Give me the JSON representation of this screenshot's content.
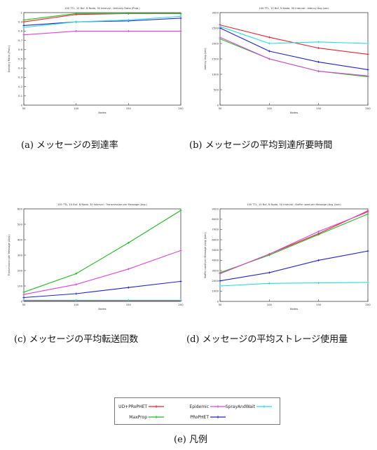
{
  "chart_data": [
    {
      "id": "a",
      "type": "line",
      "title": "100 TTL, 10 Buf, N Node, 30 Interval : Delivery Ratio (Prob.)",
      "xlabel": "Nodes",
      "ylabel": "Delivery Ratio (Prob.)",
      "x": [
        50,
        100,
        150,
        200
      ],
      "xlim": [
        50,
        200
      ],
      "ylim": [
        0,
        1
      ],
      "yticks": [
        0,
        0.1,
        0.2,
        0.3,
        0.4,
        0.5,
        0.6,
        0.7,
        0.8,
        0.9,
        1
      ],
      "ytick_labels": [
        "0",
        "0.1",
        "0.2",
        "0.3",
        "0.4",
        "0.5",
        "0.6",
        "0.7",
        "0.8",
        "0.9",
        "1"
      ],
      "grid": false,
      "series": [
        {
          "key": "ud",
          "values": [
            0.9,
            0.98,
            0.99,
            0.99
          ],
          "color": "#e8202a"
        },
        {
          "key": "maxprop",
          "values": [
            0.92,
            0.99,
            0.99,
            0.99
          ],
          "color": "#22bb22"
        },
        {
          "key": "epidemic",
          "values": [
            0.76,
            0.8,
            0.8,
            0.8
          ],
          "color": "#dd44dd"
        },
        {
          "key": "prophet",
          "values": [
            0.86,
            0.9,
            0.91,
            0.94
          ],
          "color": "#2222cc"
        },
        {
          "key": "spray",
          "values": [
            0.84,
            0.9,
            0.92,
            0.96
          ],
          "color": "#22dddd"
        }
      ]
    },
    {
      "id": "b",
      "type": "line",
      "title": "100 TTL, 10 Buf, N Node, 30 Interval : latency Avg.(sec)",
      "xlabel": "Nodes",
      "ylabel": "latency Avg.(sec)",
      "x": [
        50,
        100,
        150,
        200
      ],
      "xlim": [
        50,
        200
      ],
      "ylim": [
        0,
        3000
      ],
      "yticks": [
        0,
        500,
        1000,
        1500,
        2000,
        2500,
        3000
      ],
      "ytick_labels": [
        "0",
        "500",
        "1000",
        "1500",
        "2000",
        "2500",
        "3000"
      ],
      "grid": false,
      "series": [
        {
          "key": "ud",
          "values": [
            2600,
            2200,
            1850,
            1650
          ],
          "color": "#e8202a"
        },
        {
          "key": "maxprop",
          "values": [
            2150,
            1500,
            1100,
            920
          ],
          "color": "#22bb22"
        },
        {
          "key": "epidemic",
          "values": [
            2200,
            1500,
            1100,
            950
          ],
          "color": "#dd44dd"
        },
        {
          "key": "prophet",
          "values": [
            2500,
            1750,
            1400,
            1150
          ],
          "color": "#2222cc"
        },
        {
          "key": "spray",
          "values": [
            2550,
            2000,
            2050,
            2000
          ],
          "color": "#22dddd"
        }
      ]
    },
    {
      "id": "c",
      "type": "line",
      "title": "100 TTL, 10 Buf, N Node, 30 Interval : Transmission per Message (Avg.)",
      "xlabel": "Nodes",
      "ylabel": "Transmission per Message (Avg.)",
      "x": [
        50,
        100,
        150,
        200
      ],
      "xlim": [
        50,
        200
      ],
      "ylim": [
        0,
        600
      ],
      "yticks": [
        0,
        100,
        200,
        300,
        400,
        500,
        600
      ],
      "ytick_labels": [
        "0",
        "100",
        "200",
        "300",
        "400",
        "500",
        "600"
      ],
      "grid": false,
      "series": [
        {
          "key": "ud",
          "values": [
            5,
            5,
            5,
            5
          ],
          "color": "#e8202a"
        },
        {
          "key": "maxprop",
          "values": [
            60,
            180,
            380,
            590
          ],
          "color": "#22bb22"
        },
        {
          "key": "epidemic",
          "values": [
            45,
            110,
            210,
            330
          ],
          "color": "#dd44dd"
        },
        {
          "key": "prophet",
          "values": [
            25,
            50,
            90,
            130
          ],
          "color": "#2222cc"
        },
        {
          "key": "spray",
          "values": [
            8,
            8,
            8,
            8
          ],
          "color": "#22dddd"
        }
      ]
    },
    {
      "id": "d",
      "type": "line",
      "title": "100 TTL, 10 Buf, N Node, 30 Interval : Buffer used per Message (Avg.)(sec)",
      "xlabel": "Nodes",
      "ylabel": "Buffer used per Message (Avg.)(sec)",
      "x": [
        50,
        100,
        150,
        200
      ],
      "xlim": [
        50,
        200
      ],
      "ylim": [
        0,
        9000
      ],
      "yticks": [
        0,
        1000,
        2000,
        3000,
        4000,
        5000,
        6000,
        7000,
        8000,
        9000
      ],
      "ytick_labels": [
        "0",
        "1000",
        "2000",
        "3000",
        "4000",
        "5000",
        "6000",
        "7000",
        "8000",
        "9000"
      ],
      "grid": false,
      "series": [
        {
          "key": "ud",
          "values": [
            2700,
            4600,
            6600,
            8800
          ],
          "color": "#e8202a"
        },
        {
          "key": "maxprop",
          "values": [
            2800,
            4500,
            6500,
            8500
          ],
          "color": "#22bb22"
        },
        {
          "key": "epidemic",
          "values": [
            2700,
            4600,
            6800,
            8700
          ],
          "color": "#dd44dd"
        },
        {
          "key": "prophet",
          "values": [
            2000,
            2800,
            4000,
            4900
          ],
          "color": "#2222cc"
        },
        {
          "key": "spray",
          "values": [
            1500,
            1750,
            1800,
            1850
          ],
          "color": "#22dddd"
        }
      ]
    }
  ],
  "captions": {
    "a": "(a) メッセージの到達率",
    "b": "(b) メッセージの平均到達所要時間",
    "c": "(c) メッセージの平均転送回数",
    "d": "(d) メッセージの平均ストレージ使用量",
    "e": "(e) 凡例"
  },
  "legend": {
    "entries": [
      {
        "key": "ud",
        "label": "UD+PRoPHET",
        "color": "#e8202a"
      },
      {
        "key": "epidemic",
        "label": "Epidemic",
        "color": "#dd44dd"
      },
      {
        "key": "spray",
        "label": "SprayAndWait",
        "color": "#22dddd"
      },
      {
        "key": "maxprop",
        "label": "MaxProp",
        "color": "#22bb22"
      },
      {
        "key": "prophet",
        "label": "PRoPHET",
        "color": "#2222cc"
      }
    ]
  }
}
